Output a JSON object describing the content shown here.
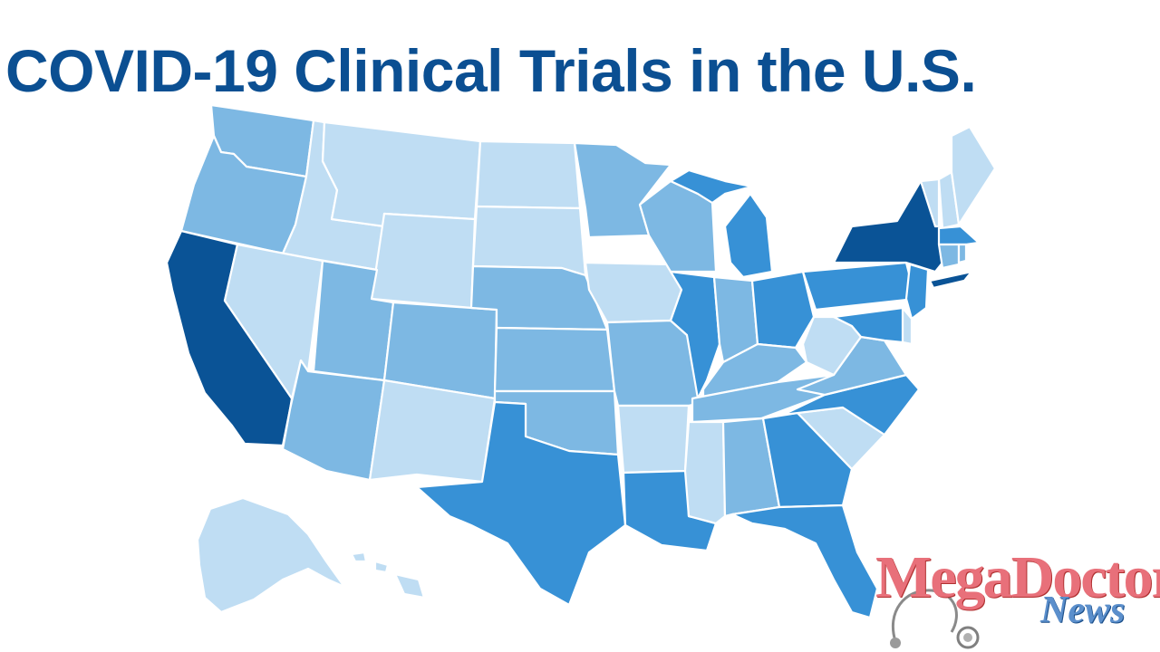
{
  "title": "COVID-19 Clinical Trials in the U.S.",
  "colors": {
    "title": "#0b4f92",
    "levels": [
      "#bfddf3",
      "#7db8e3",
      "#3791d6",
      "#0a5396"
    ],
    "border": "#ffffff",
    "logo_main": "#e8707a",
    "logo_sub": "#5b8fcc"
  },
  "map_data": {
    "type": "choropleth",
    "region": "United States",
    "legend": "none",
    "states": [
      {
        "state": "WA",
        "level": 1
      },
      {
        "state": "OR",
        "level": 1
      },
      {
        "state": "CA",
        "level": 3
      },
      {
        "state": "ID",
        "level": 0
      },
      {
        "state": "NV",
        "level": 0
      },
      {
        "state": "MT",
        "level": 0
      },
      {
        "state": "WY",
        "level": 0
      },
      {
        "state": "UT",
        "level": 1
      },
      {
        "state": "AZ",
        "level": 1
      },
      {
        "state": "CO",
        "level": 1
      },
      {
        "state": "NM",
        "level": 0
      },
      {
        "state": "ND",
        "level": 0
      },
      {
        "state": "SD",
        "level": 0
      },
      {
        "state": "NE",
        "level": 1
      },
      {
        "state": "KS",
        "level": 1
      },
      {
        "state": "OK",
        "level": 1
      },
      {
        "state": "TX",
        "level": 2
      },
      {
        "state": "MN",
        "level": 1
      },
      {
        "state": "IA",
        "level": 0
      },
      {
        "state": "MO",
        "level": 1
      },
      {
        "state": "AR",
        "level": 0
      },
      {
        "state": "LA",
        "level": 2
      },
      {
        "state": "WI",
        "level": 1
      },
      {
        "state": "IL",
        "level": 2
      },
      {
        "state": "MI",
        "level": 2
      },
      {
        "state": "IN",
        "level": 1
      },
      {
        "state": "OH",
        "level": 2
      },
      {
        "state": "KY",
        "level": 1
      },
      {
        "state": "TN",
        "level": 1
      },
      {
        "state": "MS",
        "level": 0
      },
      {
        "state": "AL",
        "level": 1
      },
      {
        "state": "GA",
        "level": 2
      },
      {
        "state": "FL",
        "level": 2
      },
      {
        "state": "SC",
        "level": 0
      },
      {
        "state": "NC",
        "level": 2
      },
      {
        "state": "VA",
        "level": 1
      },
      {
        "state": "WV",
        "level": 0
      },
      {
        "state": "PA",
        "level": 2
      },
      {
        "state": "NY",
        "level": 3
      },
      {
        "state": "VT",
        "level": 0
      },
      {
        "state": "NH",
        "level": 0
      },
      {
        "state": "ME",
        "level": 0
      },
      {
        "state": "MA",
        "level": 2
      },
      {
        "state": "CT",
        "level": 1
      },
      {
        "state": "RI",
        "level": 1
      },
      {
        "state": "NJ",
        "level": 2
      },
      {
        "state": "DE",
        "level": 0
      },
      {
        "state": "MD",
        "level": 2
      },
      {
        "state": "AK",
        "level": 0
      },
      {
        "state": "HI",
        "level": 0
      }
    ]
  },
  "logo": {
    "main_text": "MegaDoctor",
    "sub_text": "News"
  }
}
